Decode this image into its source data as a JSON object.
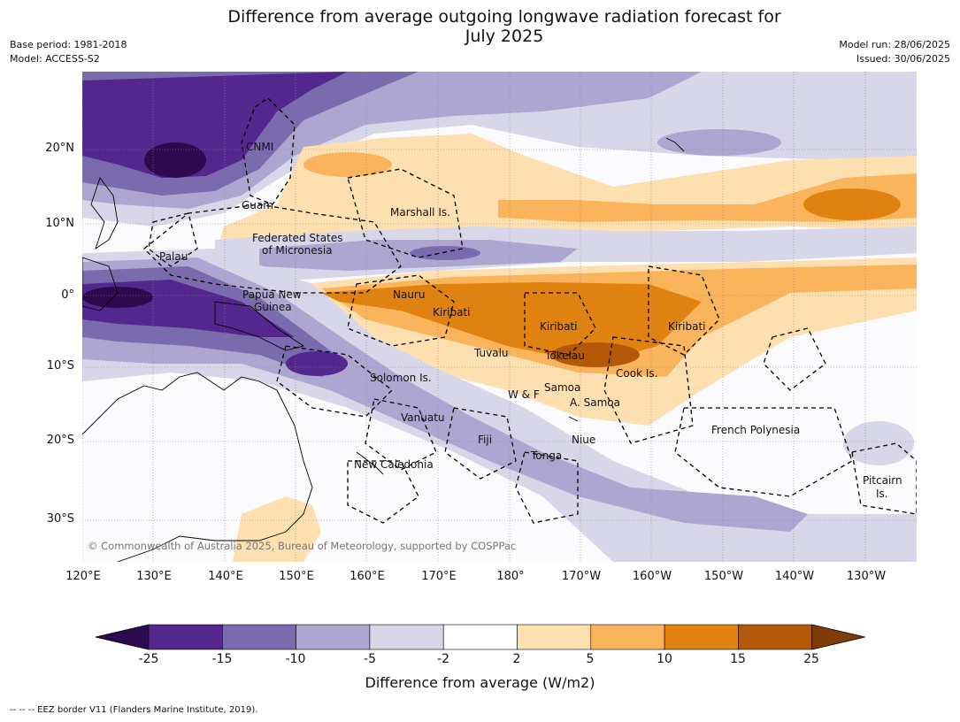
{
  "title": {
    "line1": "Difference from average outgoing longwave radiation forecast for",
    "line2": "July 2025"
  },
  "meta_left": [
    "Base period: 1981-2018",
    "Model: ACCESS-S2"
  ],
  "meta_right": [
    "Model run: 28/06/2025",
    "Issued: 30/06/2025"
  ],
  "axes": {
    "lat_ticks": [
      "20°N",
      "10°N",
      "0°",
      "10°S",
      "20°S",
      "30°S"
    ],
    "lon_ticks": [
      "120°E",
      "130°E",
      "140°E",
      "150°E",
      "160°E",
      "170°E",
      "180°",
      "170°W",
      "160°W",
      "150°W",
      "140°W",
      "130°W"
    ]
  },
  "places": [
    {
      "id": "cnmi",
      "label": "CNMI"
    },
    {
      "id": "guam",
      "label": "Guam"
    },
    {
      "id": "marshall",
      "label": "Marshall Is."
    },
    {
      "id": "fsm1",
      "label": "Federated States"
    },
    {
      "id": "fsm2",
      "label": "of Micronesia"
    },
    {
      "id": "palau",
      "label": "Palau"
    },
    {
      "id": "png1",
      "label": "Papua New"
    },
    {
      "id": "png2",
      "label": "Guinea"
    },
    {
      "id": "nauru",
      "label": "Nauru"
    },
    {
      "id": "kiribati1",
      "label": "Kiribati"
    },
    {
      "id": "kiribati2",
      "label": "Kiribati"
    },
    {
      "id": "kiribati3",
      "label": "Kiribati"
    },
    {
      "id": "tuvalu",
      "label": "Tuvalu"
    },
    {
      "id": "tokelau",
      "label": "Tokelau"
    },
    {
      "id": "cook",
      "label": "Cook Is."
    },
    {
      "id": "solomon",
      "label": "Solomon Is."
    },
    {
      "id": "wf",
      "label": "W & F"
    },
    {
      "id": "samoa",
      "label": "Samoa"
    },
    {
      "id": "asamoa",
      "label": "A. Samoa"
    },
    {
      "id": "vanuatu",
      "label": "Vanuatu"
    },
    {
      "id": "fiji",
      "label": "Fiji"
    },
    {
      "id": "niue",
      "label": "Niue"
    },
    {
      "id": "tonga",
      "label": "Tonga"
    },
    {
      "id": "frpoly",
      "label": "French Polynesia"
    },
    {
      "id": "newcal",
      "label": "New Caledonia"
    },
    {
      "id": "pitcairn1",
      "label": "Pitcairn"
    },
    {
      "id": "pitcairn2",
      "label": "Is."
    }
  ],
  "copyright": "© Commonwealth of Australia 2025, Bureau of Meteorology, supported by COSPPac",
  "colorbar": {
    "title": "Difference from average (W/m2)",
    "ticks": [
      "-25",
      "-15",
      "-10",
      "-5",
      "-2",
      "2",
      "5",
      "10",
      "15",
      "25"
    ],
    "colors": [
      "#2d0a4e",
      "#54278f",
      "#7a6bae",
      "#aca6d0",
      "#d8d7ea",
      "#ffffff",
      "#fddfb0",
      "#fab45c",
      "#e0820f",
      "#b35806",
      "#7f3b08"
    ]
  },
  "footnote": "--  --  -- EEZ border V11 (Flanders Marine Institute, 2019)."
}
